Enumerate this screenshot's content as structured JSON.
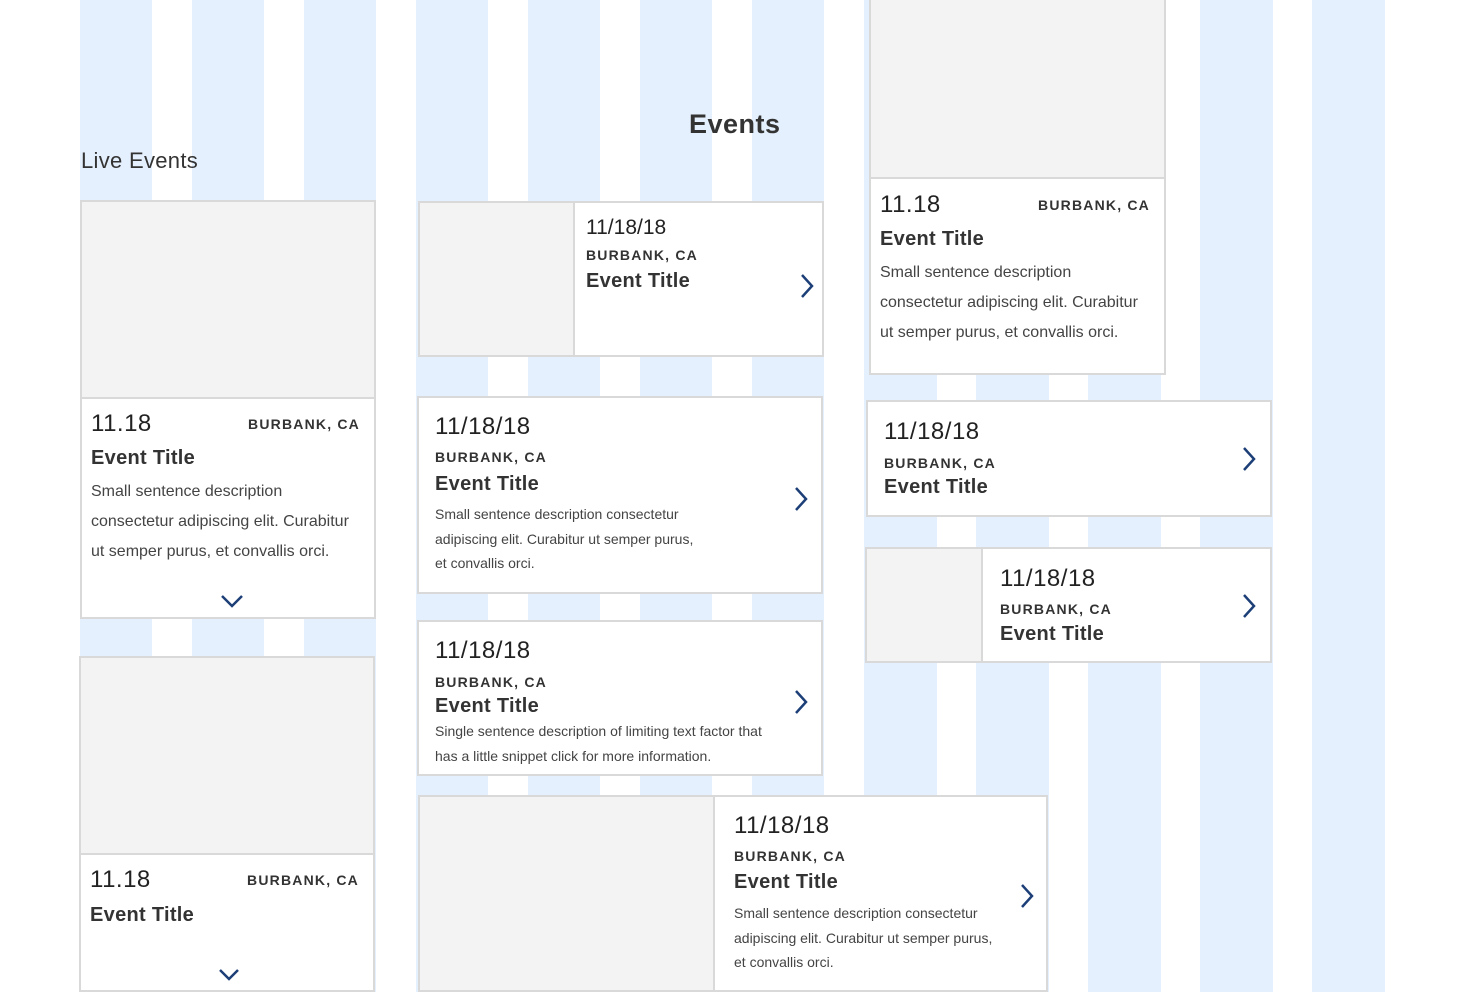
{
  "headings": {
    "live_events": "Live Events",
    "events": "Events"
  },
  "cards": {
    "live_card_1": {
      "date": "11.18",
      "location": "BURBANK, CA",
      "title": "Event Title",
      "description": "Small sentence description consectetur adipiscing elit. Curabitur ut semper purus, et convallis orci."
    },
    "live_card_2": {
      "date": "11.18",
      "location": "BURBANK, CA",
      "title": "Event Title"
    },
    "list_card_1": {
      "date": "11/18/18",
      "location": "BURBANK, CA",
      "title": "Event Title"
    },
    "list_card_2": {
      "date": "11/18/18",
      "location": "BURBANK, CA",
      "title": "Event Title",
      "description": "Small sentence description consectetur adipiscing elit. Curabitur ut semper purus, et convallis orci."
    },
    "list_card_3": {
      "date": "11/18/18",
      "location": "BURBANK, CA",
      "title": "Event Title",
      "description": "Single sentence description of limiting text factor that has a little snippet click for more information."
    },
    "wide_card": {
      "date": "11/18/18",
      "location": "BURBANK, CA",
      "title": "Event Title",
      "description": "Small sentence description consectetur adipiscing elit. Curabitur ut semper purus, et convallis orci."
    },
    "tall_card": {
      "date": "11.18",
      "location": "BURBANK, CA",
      "title": "Event Title",
      "description": "Small sentence description consectetur adipiscing elit. Curabitur ut semper purus, et convallis orci."
    },
    "compact_card": {
      "date": "11/18/18",
      "location": "BURBANK, CA",
      "title": "Event Title"
    },
    "thumb_card": {
      "date": "11/18/18",
      "location": "BURBANK, CA",
      "title": "Event Title"
    }
  },
  "icons": {
    "chevron_right": "chevron-right-icon",
    "chevron_down": "chevron-down-icon"
  },
  "colors": {
    "grid_stripe": "#e4f0fd",
    "accent": "#1d3f77",
    "card_border": "#d9d9d9",
    "image_placeholder": "#f3f3f3"
  }
}
